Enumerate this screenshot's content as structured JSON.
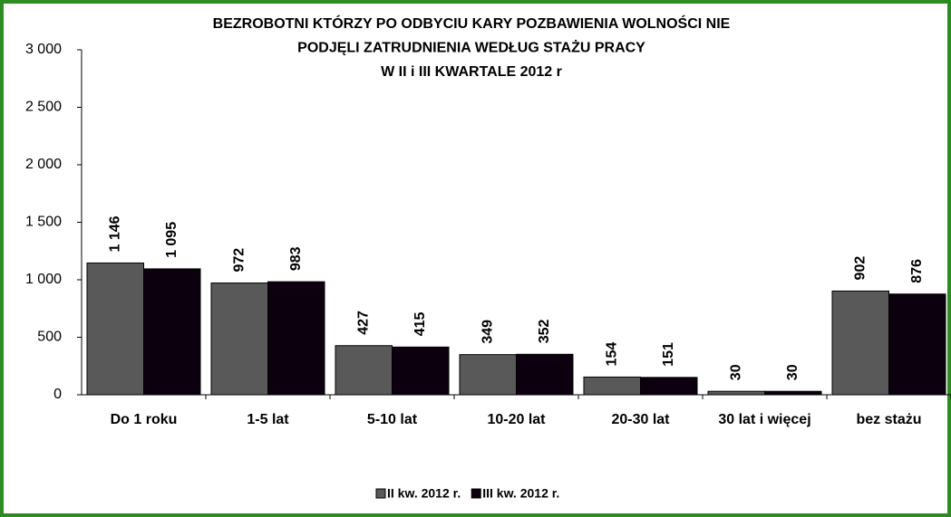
{
  "chart_data": {
    "type": "bar",
    "title": [
      "BEZROBOTNI KTÓRZY PO ODBYCIU KARY POZBAWIENIA WOLNOŚCI NIE",
      "PODJĘLI ZATRUDNIENIA WEDŁUG  STAŻU  PRACY",
      "W  II i III KWARTALE 2012 r"
    ],
    "categories": [
      "Do 1 roku",
      "1-5 lat",
      "5-10 lat",
      "10-20 lat",
      "20-30 lat",
      "30 lat i więcej",
      "bez stażu"
    ],
    "series": [
      {
        "name": "II kw. 2012 r.",
        "color": "#595959",
        "values": [
          1146,
          972,
          427,
          349,
          154,
          30,
          902
        ],
        "value_labels": [
          "1 146",
          "972",
          "427",
          "349",
          "154",
          "30",
          "902"
        ]
      },
      {
        "name": "III kw. 2012 r.",
        "color": "#0c000f",
        "values": [
          1095,
          983,
          415,
          352,
          151,
          30,
          876
        ],
        "value_labels": [
          "1 095",
          "983",
          "415",
          "352",
          "151",
          "30",
          "876"
        ]
      }
    ],
    "ylim": [
      0,
      3000
    ],
    "yticks": [
      0,
      500,
      {
        "value": 1000,
        "label": "1 000"
      },
      {
        "value": 1500,
        "label": "1 500"
      },
      {
        "value": 2000,
        "label": "2 000"
      },
      {
        "value": 2500,
        "label": "2 500"
      },
      {
        "value": 3000,
        "label": "3 000"
      }
    ],
    "legend": "bottom"
  }
}
